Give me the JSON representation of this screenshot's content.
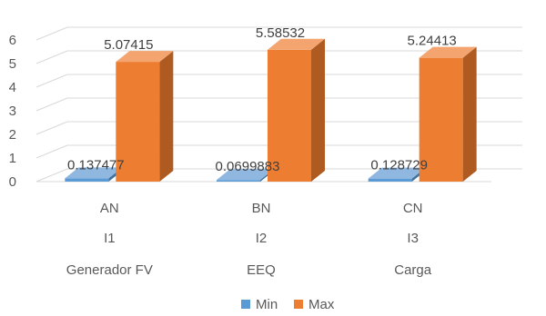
{
  "chart_data": {
    "type": "bar",
    "three_d": true,
    "categories": [
      [
        "AN",
        "I1",
        "Generador FV"
      ],
      [
        "BN",
        "I2",
        "EEQ"
      ],
      [
        "CN",
        "I3",
        "Carga"
      ]
    ],
    "series": [
      {
        "name": "Min",
        "values": [
          0.137477,
          0.0699883,
          0.128729
        ],
        "labels": [
          "0.137477",
          "0.0699883",
          "0.128729"
        ]
      },
      {
        "name": "Max",
        "values": [
          5.07415,
          5.58532,
          5.24413
        ],
        "labels": [
          "5.07415",
          "5.58532",
          "5.24413"
        ]
      }
    ],
    "ylim": [
      0,
      6
    ],
    "yticks": [
      "0",
      "1",
      "2",
      "3",
      "4",
      "5",
      "6"
    ],
    "grid": true,
    "legend": "bottom",
    "colors": {
      "Min": "#5B9BD5",
      "Max": "#ED7D31"
    }
  }
}
